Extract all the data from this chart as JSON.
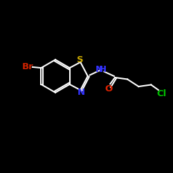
{
  "background_color": "#000000",
  "bond_color": "#ffffff",
  "bond_width": 1.5,
  "atoms": {
    "Br": {
      "color": "#cc2200",
      "fontsize": 9.5
    },
    "S": {
      "color": "#ccaa00",
      "fontsize": 9.5
    },
    "N": {
      "color": "#3333ff",
      "fontsize": 9.5
    },
    "O": {
      "color": "#dd2200",
      "fontsize": 9.5
    },
    "Cl": {
      "color": "#00bb00",
      "fontsize": 9.5
    }
  },
  "figsize": [
    2.5,
    2.5
  ],
  "dpi": 100
}
